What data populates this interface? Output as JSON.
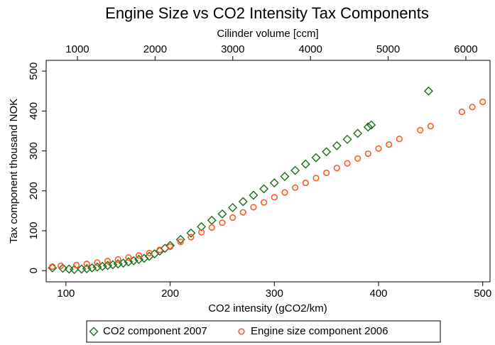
{
  "chart_data": {
    "type": "scatter",
    "title": "Engine Size vs CO2 Intensity Tax Components",
    "xlabel": "CO2 intensity (gCO2/km)",
    "ylabel": "Tax component thousand NOK",
    "x2label": "Cilinder volume [ccm]",
    "xlim": [
      81,
      507
    ],
    "xticks": [
      100,
      200,
      300,
      400,
      500
    ],
    "x2lim": [
      598,
      6311
    ],
    "x2ticks": [
      1000,
      2000,
      3000,
      4000,
      5000,
      6000
    ],
    "ylim": [
      -28,
      527
    ],
    "yticks": [
      0,
      100,
      200,
      300,
      400,
      500
    ],
    "legend": "bottom",
    "series": [
      {
        "name": "CO2 component 2007",
        "color": "#1a6e1a",
        "marker": "diamond",
        "x": [
          87,
          97,
          103,
          108,
          115,
          120,
          125,
          130,
          135,
          140,
          145,
          150,
          155,
          160,
          165,
          170,
          175,
          180,
          185,
          190,
          195,
          200,
          210,
          220,
          230,
          240,
          250,
          260,
          270,
          280,
          290,
          300,
          310,
          320,
          330,
          340,
          350,
          360,
          370,
          380,
          390,
          393,
          448
        ],
        "values": [
          7,
          6,
          4,
          3,
          4,
          5,
          7,
          9,
          11,
          13,
          15,
          17,
          19,
          22,
          25,
          28,
          31,
          36,
          42,
          49,
          56,
          63,
          78,
          94,
          110,
          126,
          142,
          158,
          173,
          189,
          205,
          220,
          236,
          251,
          267,
          283,
          298,
          313,
          329,
          344,
          360,
          365,
          450
        ]
      },
      {
        "name": "Engine size component 2006",
        "color": "#ff5a1f",
        "marker": "circle",
        "x": [
          87,
          95,
          110,
          120,
          130,
          140,
          150,
          160,
          170,
          180,
          190,
          200,
          210,
          220,
          230,
          240,
          250,
          260,
          270,
          280,
          290,
          300,
          310,
          320,
          330,
          340,
          350,
          360,
          370,
          380,
          390,
          400,
          410,
          420,
          440,
          450,
          480,
          490,
          500
        ],
        "values": [
          10,
          12,
          14,
          17,
          20,
          24,
          28,
          33,
          38,
          44,
          52,
          60,
          72,
          84,
          96,
          108,
          120,
          133,
          146,
          159,
          171,
          184,
          196,
          208,
          220,
          232,
          245,
          257,
          269,
          281,
          293,
          306,
          316,
          330,
          352,
          362,
          398,
          410,
          423
        ]
      }
    ]
  }
}
